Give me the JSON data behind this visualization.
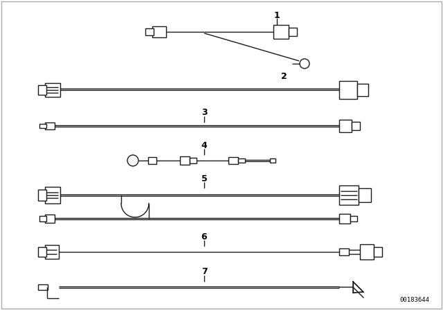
{
  "bg_color": "#ffffff",
  "line_color": "#1a1a1a",
  "figsize": [
    6.4,
    4.48
  ],
  "dpi": 100,
  "part_number": "00183644",
  "border_color": "#cccccc"
}
